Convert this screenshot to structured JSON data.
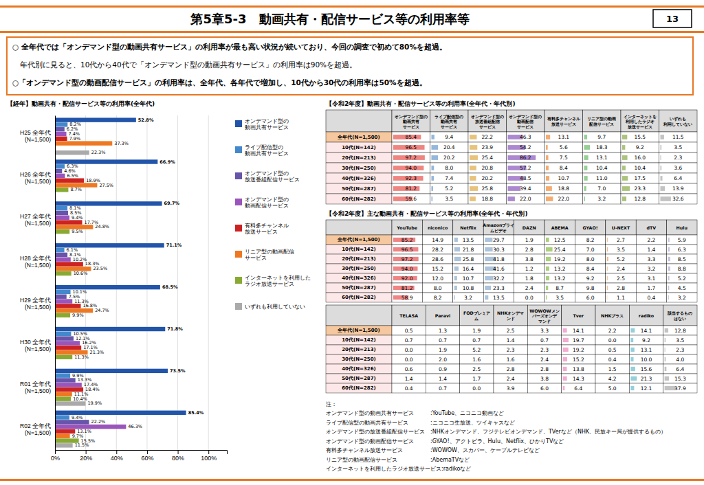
{
  "title": "第5章5-3　動画共有・配信サービス等の利用率等",
  "annotations": [
    "13",
    "○ 全年代では「オンデマンド型の動画共有サービス」の利用率が最も高い状況が続いており、今回の調査で初めて80%を超過。",
    "　年代別に見ると、10代から40代で「オンデマンド型の動画共有サービス」の利用率は90%を超過。",
    "○「オンデマンド型の動画配信サービス」の利用率は、全年代、各年代で増加し、10代から30代の利用率は50%を超過。",
    "注：",
    "オンデマンド型の動画共有サービス　　　:YouTube、ニコニコ動画など",
    "ライブ配信型の動画共有サービス　　　　:ニコニコ生放送、ツイキャスなど",
    "オンデマンド型の放送番組配信サービス　:NHKオンデマンド、フジテレビオンデマンド、TVerなど（NHK、民放キー局が提供するもの）",
    "オンデマンド型の動画配信サービス　　　:GYAO!、アクトビラ、Hulu、Netflix、ひかりTVなど",
    "有料多チャンネル放送サービス　　　　　:WOWOW、スカパー、ケーブルテレビなど",
    "リニア型の動画配信サービス　　　　　　:AbemaTVなど",
    "インターネットを利用したラジオ放送サービス:radikoなど"
  ],
  "chart_data": [
    {
      "type": "bar",
      "orientation": "horizontal",
      "title": "【経年】動画共有・配信サービス等の利用率(全年代)",
      "categories": [
        "H25 全年代\n(N=1,500)",
        "H26 全年代\n(N=1,500)",
        "H27 全年代\n(N=1,500)",
        "H28 全年代\n(N=1,500)",
        "H29 全年代\n(N=1,500)",
        "H30 全年代\n(N=1,500)",
        "R01 全年代\n(N=1,500)",
        "R02 全年代\n(N=1,500)"
      ],
      "series": [
        {
          "name": "オンデマンド型の\n動画共有サービス",
          "color": "#2255aa",
          "values": [
            52.8,
            66.9,
            69.7,
            71.1,
            68.5,
            71.8,
            73.5,
            85.4
          ],
          "value_labels": [
            "52.8%",
            "66.9%",
            "69.7%",
            "71.1%",
            "68.5%",
            "71.8%",
            "73.5%",
            "85.4%"
          ]
        },
        {
          "name": "ライブ配信型の\n動画共有サービス",
          "color": "#4488cc",
          "values": [
            8.2,
            6.3,
            8.1,
            6.1,
            10.1,
            10.5,
            9.9,
            9.4
          ],
          "value_labels": [
            "8.2%",
            "6.3%",
            "8.1%",
            "6.1%",
            "10.1%",
            "10.5%",
            "9.9%",
            "9.4%"
          ]
        },
        {
          "name": "オンデマンド型の\n放送番組配信サービス",
          "color": "#6655aa",
          "values": [
            6.2,
            4.6,
            8.5,
            8.1,
            7.5,
            12.1,
            13.3,
            22.2
          ],
          "value_labels": [
            "6.2%",
            "4.6%",
            "8.5%",
            "8.1%",
            "7.5%",
            "12.1%",
            "13.3%",
            "22.2%"
          ]
        },
        {
          "name": "オンデマンド型の\n動画配信サービス",
          "color": "#9955bb",
          "values": [
            7.4,
            6.5,
            9.4,
            10.2,
            11.3,
            16.2,
            17.4,
            46.3
          ],
          "value_labels": [
            "7.4%",
            "6.5%",
            "9.4%",
            "10.2%",
            "11.3%",
            "16.2%",
            "17.4%",
            "46.3%"
          ]
        },
        {
          "name": "有料多チャンネル\n放送サービス",
          "color": "#cc2222",
          "values": [
            7.9,
            18.9,
            17.7,
            18.3,
            16.8,
            17.1,
            18.4,
            13.1
          ],
          "value_labels": [
            "7.9%",
            "18.9%",
            "17.7%",
            "18.3%",
            "16.8%",
            "17.1%",
            "18.4%",
            "13.1%"
          ]
        },
        {
          "name": "リニア型の動画配信\nサービス",
          "color": "#ee7722",
          "values": [
            37.3,
            27.5,
            24.8,
            23.5,
            24.7,
            21.3,
            11.1,
            9.7
          ],
          "value_labels": [
            "37.3%",
            "27.5%",
            "24.8%",
            "23.5%",
            "24.7%",
            "21.3%",
            "11.1%",
            "9.7%"
          ]
        },
        {
          "name": "インターネットを利用した\nラジオ放送サービス",
          "color": "#88aa33",
          "values": [
            null,
            8.7,
            9.5,
            10.6,
            9.9,
            11.3,
            10.4,
            15.5
          ],
          "value_labels": [
            null,
            "8.7%",
            "9.5%",
            "10.6%",
            "9.9%",
            "11.3%",
            "10.4%",
            "15.5%"
          ]
        },
        {
          "name": "いずれも利用していない",
          "color": "#aaaaaa",
          "values": [
            22.3,
            null,
            null,
            null,
            null,
            null,
            19.9,
            11.5
          ],
          "value_labels": [
            "22.3%",
            null,
            null,
            null,
            null,
            null,
            "19.9%",
            "11.5%"
          ]
        }
      ],
      "xlim": [
        0,
        112
      ],
      "xticks": [
        {
          "value": 0,
          "label": "0%"
        },
        {
          "value": 20,
          "label": "20%"
        },
        {
          "value": 40,
          "label": "40%"
        },
        {
          "value": 60,
          "label": "60%"
        },
        {
          "value": 80,
          "label": "80%"
        },
        {
          "value": 100,
          "label": "100%"
        }
      ],
      "grid": true,
      "legend": "right",
      "data_labels": true
    },
    {
      "type": "table",
      "title": "【令和2年度】動画共有・配信サービス等の利用率(全年代・年代別)",
      "categories": [
        "全年代(N=1,500)",
        "10代(N=142)",
        "20代(N=213)",
        "30代(N=250)",
        "40代(N=326)",
        "50代(N=287)",
        "60代(N=282)"
      ],
      "series": [
        {
          "name": "オンデマンド型の\n動画共有\nサービス",
          "color": "#e8504a",
          "values": [
            85.4,
            96.5,
            97.2,
            94.0,
            92.3,
            81.2,
            59.6
          ],
          "value_labels": [
            "85.4",
            "96.5",
            "97.2",
            "94.0",
            "92.3",
            "81.2",
            "59.6"
          ]
        },
        {
          "name": "ライブ配信型の\n動画共有\nサービス",
          "color": "#6699cc",
          "values": [
            9.4,
            20.4,
            20.2,
            8.0,
            7.4,
            5.2,
            3.5
          ],
          "value_labels": [
            "9.4",
            "20.4",
            "20.2",
            "8.0",
            "7.4",
            "5.2",
            "3.5"
          ]
        },
        {
          "name": "オンデマンド型の\n放送番組配信\nサービス",
          "color": "#ddaa44",
          "values": [
            22.2,
            23.9,
            25.4,
            20.8,
            20.2,
            25.8,
            18.8
          ],
          "value_labels": [
            "22.2",
            "23.9",
            "25.4",
            "20.8",
            "20.2",
            "25.8",
            "18.8"
          ]
        },
        {
          "name": "オンデマンド型の\n動画配信\nサービス",
          "color": "#8855bb",
          "values": [
            46.3,
            54.2,
            86.2,
            57.2,
            48.5,
            39.4,
            22.0
          ],
          "value_labels": [
            "46.3",
            "54.2",
            "86.2",
            "57.2",
            "48.5",
            "39.4",
            "22.0"
          ]
        },
        {
          "name": "有料多チャンネル\n放送サービス",
          "color": "#ee8833",
          "values": [
            13.1,
            5.6,
            7.5,
            8.4,
            10.7,
            18.8,
            22.0
          ],
          "value_labels": [
            "13.1",
            "5.6",
            "7.5",
            "8.4",
            "10.7",
            "18.8",
            "22.0"
          ]
        },
        {
          "name": "リニア型の動画\n配信サービス",
          "color": "#66bb66",
          "values": [
            9.7,
            18.3,
            13.1,
            10.4,
            11.0,
            7.0,
            3.2
          ],
          "value_labels": [
            "9.7",
            "18.3",
            "13.1",
            "10.4",
            "11.0",
            "7.0",
            "3.2"
          ]
        },
        {
          "name": "インターネットを\n利用したラジオ\n放送サービス",
          "color": "#88aa44",
          "values": [
            15.5,
            9.2,
            16.0,
            10.4,
            17.5,
            23.3,
            12.8
          ],
          "value_labels": [
            "15.5",
            "9.2",
            "16.0",
            "10.4",
            "17.5",
            "23.3",
            "12.8"
          ]
        },
        {
          "name": "いずれも\n利用していない",
          "color": "#aaaaaa",
          "values": [
            11.5,
            3.5,
            2.3,
            3.6,
            6.4,
            13.9,
            32.6
          ],
          "value_labels": [
            "11.5",
            "3.5",
            "2.3",
            "3.6",
            "6.4",
            "13.9",
            "32.6"
          ]
        }
      ],
      "xlim": [
        0,
        100
      ],
      "data_labels": true
    },
    {
      "type": "table",
      "title": "【令和2年度】主な動画共有・配信サービス等の利用率(全年代・年代別)",
      "categories": [
        "全年代(N=1,500)",
        "10代(N=142)",
        "20代(N=213)",
        "30代(N=250)",
        "40代(N=326)",
        "50代(N=287)",
        "60代(N=282)"
      ],
      "series": [
        {
          "name": "YouTube",
          "color": "#e85050",
          "values": [
            85.2,
            96.5,
            97.2,
            94.0,
            92.0,
            81.2,
            58.9
          ],
          "value_labels": [
            "85.2",
            "96.5",
            "97.2",
            "94.0",
            "92.0",
            "81.2",
            "58.9"
          ]
        },
        {
          "name": "niconico",
          "values": [
            14.9,
            28.2,
            28.6,
            15.2,
            12.0,
            8.0,
            8.2
          ],
          "value_labels": [
            "14.9",
            "28.2",
            "28.6",
            "15.2",
            "12.0",
            "8.0",
            "8.2"
          ]
        },
        {
          "name": "Netflix",
          "color": "#88aacc",
          "values": [
            13.5,
            21.8,
            25.8,
            16.4,
            10.7,
            10.8,
            3.2
          ],
          "value_labels": [
            "13.5",
            "21.8",
            "25.8",
            "16.4",
            "10.7",
            "10.8",
            "3.2"
          ]
        },
        {
          "name": "Amazonプライ\nムビデオ",
          "color": "#88aacc",
          "values": [
            29.7,
            30.3,
            41.8,
            41.6,
            32.2,
            23.3,
            13.5
          ],
          "value_labels": [
            "29.7",
            "30.3",
            "41.8",
            "41.6",
            "32.2",
            "23.3",
            "13.5"
          ]
        },
        {
          "name": "DAZN",
          "values": [
            1.9,
            2.8,
            3.8,
            1.2,
            1.8,
            2.4,
            0.0
          ],
          "value_labels": [
            "1.9",
            "2.8",
            "3.8",
            "1.2",
            "1.8",
            "2.4",
            "0.0"
          ]
        },
        {
          "name": "ABEMA",
          "color": "#88bb44",
          "values": [
            12.5,
            25.4,
            19.2,
            13.2,
            13.2,
            8.7,
            3.5
          ],
          "value_labels": [
            "12.5",
            "25.4",
            "19.2",
            "13.2",
            "13.2",
            "8.7",
            "3.5"
          ]
        },
        {
          "name": "GYAO!",
          "values": [
            8.2,
            7.0,
            8.0,
            8.4,
            9.2,
            9.8,
            6.0
          ],
          "value_labels": [
            "8.2",
            "7.0",
            "8.0",
            "8.4",
            "9.2",
            "9.8",
            "6.0"
          ]
        },
        {
          "name": "U-NEXT",
          "color": "#ee9944",
          "values": [
            2.7,
            3.5,
            5.2,
            2.4,
            2.5,
            2.8,
            1.1
          ],
          "value_labels": [
            "2.7",
            "3.5",
            "5.2",
            "2.4",
            "2.5",
            "2.8",
            "1.1"
          ]
        },
        {
          "name": "dTV",
          "values": [
            2.2,
            1.4,
            3.3,
            3.2,
            3.1,
            1.7,
            0.4
          ],
          "value_labels": [
            "2.2",
            "1.4",
            "3.3",
            "3.2",
            "3.1",
            "1.7",
            "0.4"
          ]
        },
        {
          "name": "Hulu",
          "color": "#aaaacc",
          "values": [
            5.9,
            6.3,
            8.5,
            8.8,
            5.2,
            4.5,
            3.2
          ],
          "value_labels": [
            "5.9",
            "6.3",
            "8.5",
            "8.8",
            "5.2",
            "4.5",
            "3.2"
          ]
        }
      ],
      "xlim": [
        0,
        100
      ],
      "data_labels": true
    },
    {
      "type": "table",
      "categories": [
        "全年代(N=1,500)",
        "10代(N=142)",
        "20代(N=213)",
        "30代(N=250)",
        "40代(N=326)",
        "50代(N=287)",
        "60代(N=282)"
      ],
      "series": [
        {
          "name": "TELASA",
          "values": [
            0.5,
            0.7,
            0.0,
            0.0,
            0.6,
            1.4,
            0.4
          ],
          "value_labels": [
            "0.5",
            "0.7",
            "0.0",
            "0.0",
            "0.6",
            "1.4",
            "0.4"
          ]
        },
        {
          "name": "Paravi",
          "values": [
            1.3,
            0.7,
            1.9,
            2.0,
            0.9,
            1.4,
            0.7
          ],
          "value_labels": [
            "1.3",
            "0.7",
            "1.9",
            "2.0",
            "0.9",
            "1.4",
            "0.7"
          ]
        },
        {
          "name": "FODプレミア\nム",
          "values": [
            1.9,
            0.7,
            5.2,
            1.6,
            2.5,
            1.7,
            0.0
          ],
          "value_labels": [
            "1.9",
            "0.7",
            "5.2",
            "1.6",
            "2.5",
            "1.7",
            "0.0"
          ]
        },
        {
          "name": "NHKオンデマ\nンド",
          "values": [
            2.5,
            1.4,
            2.3,
            1.6,
            2.8,
            2.4,
            3.9
          ],
          "value_labels": [
            "2.5",
            "1.4",
            "2.3",
            "1.6",
            "2.8",
            "2.4",
            "3.9"
          ]
        },
        {
          "name": "WOWOWメン\nバーズオンデ\nマンド",
          "values": [
            3.3,
            0.7,
            2.3,
            2.4,
            2.8,
            3.8,
            6.0
          ],
          "value_labels": [
            "3.3",
            "0.7",
            "2.3",
            "2.4",
            "2.8",
            "3.8",
            "6.0"
          ]
        },
        {
          "name": "Tver",
          "color": "#ee88bb",
          "values": [
            14.1,
            19.7,
            19.2,
            15.2,
            13.8,
            14.3,
            6.4
          ],
          "value_labels": [
            "14.1",
            "19.7",
            "19.2",
            "15.2",
            "13.8",
            "14.3",
            "6.4"
          ]
        },
        {
          "name": "NHKプラス",
          "values": [
            2.2,
            0.0,
            0.5,
            0.4,
            1.5,
            4.2,
            5.0
          ],
          "value_labels": [
            "2.2",
            "0.0",
            "0.5",
            "0.4",
            "1.5",
            "4.2",
            "5.0"
          ]
        },
        {
          "name": "radiko",
          "color": "#66bbcc",
          "values": [
            14.1,
            9.2,
            13.1,
            10.0,
            15.6,
            21.3,
            12.1
          ],
          "value_labels": [
            "14.1",
            "9.2",
            "13.1",
            "10.0",
            "15.6",
            "21.3",
            "12.1"
          ]
        },
        {
          "name": "該当するもの\nはない",
          "color": "#aaaaaa",
          "values": [
            12.8,
            3.5,
            2.3,
            4.0,
            6.4,
            15.3,
            37.9
          ],
          "value_labels": [
            "12.8",
            "3.5",
            "2.3",
            "4.0",
            "6.4",
            "15.3",
            "37.9"
          ]
        }
      ],
      "xlim": [
        0,
        100
      ],
      "data_labels": true
    }
  ]
}
